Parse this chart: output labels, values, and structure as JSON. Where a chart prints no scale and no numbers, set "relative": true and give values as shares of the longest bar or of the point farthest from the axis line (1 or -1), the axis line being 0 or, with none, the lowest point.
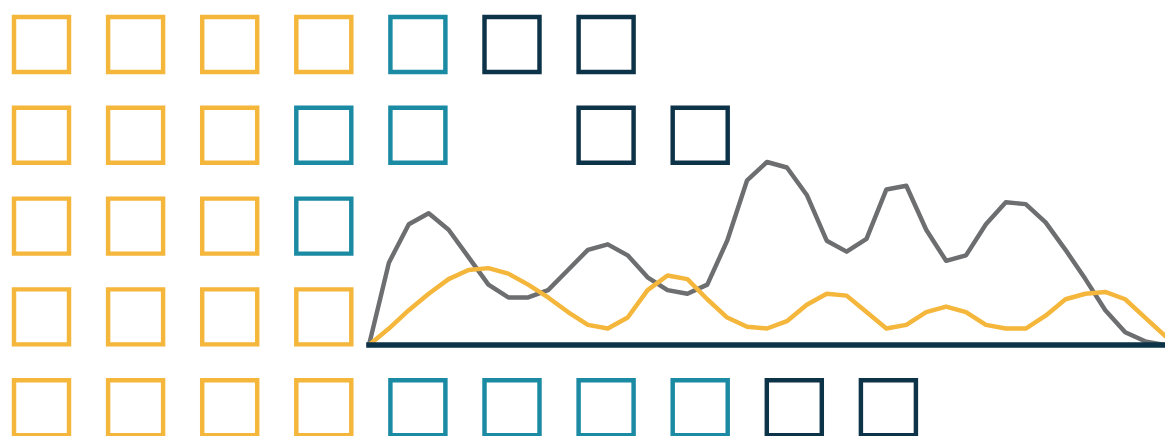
{
  "chart_data": {
    "type": "line",
    "relative": true,
    "line_style": "solid",
    "marker": "none",
    "categories": [
      null,
      null,
      null,
      null,
      null,
      null,
      null,
      null,
      null,
      null,
      null,
      null,
      null,
      null,
      null,
      null,
      null,
      null,
      null,
      null,
      null,
      null,
      null,
      null,
      null,
      null,
      null,
      null,
      null,
      null,
      null,
      null,
      null,
      null,
      null,
      null,
      null,
      null,
      null,
      null,
      null
    ],
    "series": [
      {
        "color": "#6d6e70",
        "values": [
          0,
          0.45,
          0.66,
          0.72,
          0.63,
          0.48,
          0.33,
          0.26,
          0.26,
          0.3,
          0.41,
          0.52,
          0.55,
          0.49,
          0.37,
          0.3,
          0.28,
          0.33,
          0.57,
          0.9,
          1,
          0.97,
          0.82,
          0.57,
          0.51,
          0.58,
          0.85,
          0.87,
          0.63,
          0.46,
          0.49,
          0.66,
          0.78,
          0.77,
          0.67,
          0.52,
          0.36,
          0.19,
          0.07,
          0.02,
          0
        ]
      },
      {
        "color": "#f4b63b",
        "values": [
          0,
          0.09,
          0.19,
          0.28,
          0.36,
          0.41,
          0.42,
          0.39,
          0.33,
          0.26,
          0.18,
          0.11,
          0.09,
          0.15,
          0.3,
          0.38,
          0.36,
          0.25,
          0.15,
          0.1,
          0.09,
          0.13,
          0.22,
          0.28,
          0.27,
          0.18,
          0.09,
          0.11,
          0.18,
          0.21,
          0.18,
          0.11,
          0.09,
          0.09,
          0.16,
          0.25,
          0.28,
          0.29,
          0.25,
          0.15,
          0.05
        ]
      }
    ]
  }
}
